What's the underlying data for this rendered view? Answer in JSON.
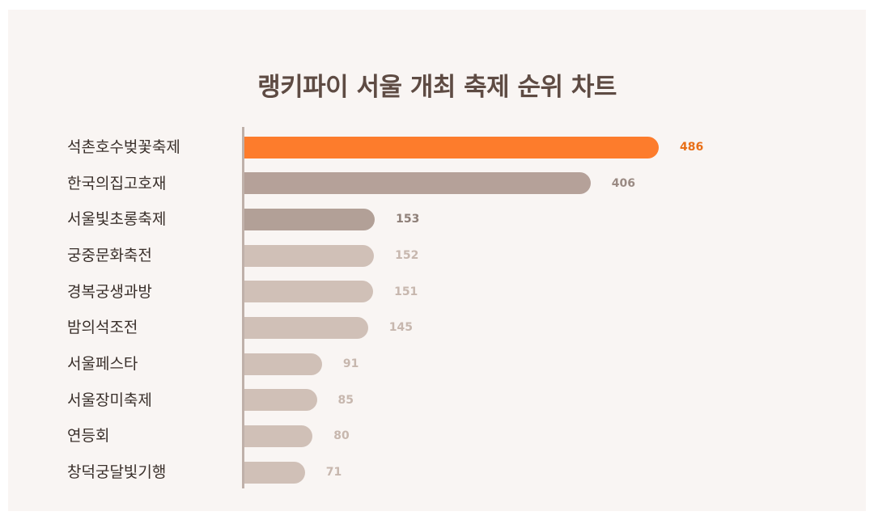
{
  "chart_data": {
    "type": "bar",
    "orientation": "horizontal",
    "title": "랭키파이 서울 개최 축제 순위 차트",
    "categories": [
      "석촌호수벚꽃축제",
      "한국의집고호재",
      "서울빛초롱축제",
      "궁중문화축전",
      "경복궁생과방",
      "밤의석조전",
      "서울페스타",
      "서울장미축제",
      "연등회",
      "창덕궁달빛기행"
    ],
    "values": [
      486,
      406,
      153,
      152,
      151,
      145,
      91,
      85,
      80,
      71
    ],
    "value_labels": [
      "486",
      "406",
      "153",
      "152",
      "151",
      "145",
      "91",
      "85",
      "80",
      "71"
    ],
    "xlim": [
      0,
      500
    ],
    "grid": false,
    "legend": "none"
  },
  "colors": {
    "highlight_bar": "#fd7c2c",
    "highlight_label": "#e86f17",
    "second_bar": "#b5a199",
    "second_label": "#9a8a83",
    "third_bar": "#b2a097",
    "third_label": "#8e7f78",
    "other_bar": "#d0c0b7",
    "other_label": "#c7b7ae"
  }
}
